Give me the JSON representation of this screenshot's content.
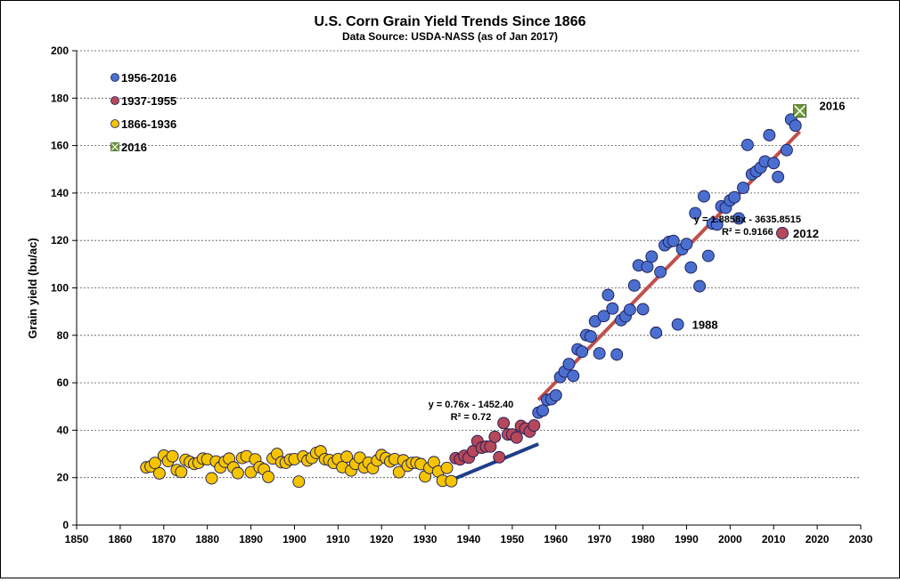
{
  "chart_data": {
    "type": "scatter",
    "title": "U.S. Corn Grain Yield Trends Since 1866",
    "subtitle": "Data Source: USDA-NASS (as of Jan 2017)",
    "xlabel": "",
    "ylabel": "Grain yield (bu/ac)",
    "xlim": [
      1850,
      2030
    ],
    "ylim": [
      0,
      200
    ],
    "xticks": [
      1850,
      1860,
      1870,
      1880,
      1890,
      1900,
      1910,
      1920,
      1930,
      1940,
      1950,
      1960,
      1970,
      1980,
      1990,
      2000,
      2010,
      2020,
      2030
    ],
    "yticks": [
      0,
      20,
      40,
      60,
      80,
      100,
      120,
      140,
      160,
      180,
      200
    ],
    "grid": "horizontal-dashed",
    "legend_position": "top-left",
    "colors": {
      "1956-2016": "#4a6fcf",
      "1937-1955": "#b5485a",
      "1866-1936": "#f5c400",
      "2016": "#6e9a3a",
      "trend_modern": "#c0504d",
      "trend_hybrid": "#1f3d8a"
    },
    "series": [
      {
        "name": "1956-2016",
        "marker": "circle",
        "points": [
          [
            1956,
            47.4
          ],
          [
            1957,
            48.3
          ],
          [
            1958,
            52.8
          ],
          [
            1959,
            53.1
          ],
          [
            1960,
            54.7
          ],
          [
            1961,
            62.4
          ],
          [
            1962,
            64.7
          ],
          [
            1963,
            67.9
          ],
          [
            1964,
            62.9
          ],
          [
            1965,
            74.1
          ],
          [
            1966,
            73.1
          ],
          [
            1967,
            80.1
          ],
          [
            1968,
            79.5
          ],
          [
            1969,
            85.9
          ],
          [
            1970,
            72.4
          ],
          [
            1971,
            88.1
          ],
          [
            1972,
            97.0
          ],
          [
            1973,
            91.3
          ],
          [
            1974,
            71.9
          ],
          [
            1975,
            86.4
          ],
          [
            1976,
            88.0
          ],
          [
            1977,
            90.8
          ],
          [
            1978,
            101.0
          ],
          [
            1979,
            109.5
          ],
          [
            1980,
            91.0
          ],
          [
            1981,
            108.9
          ],
          [
            1982,
            113.2
          ],
          [
            1983,
            81.1
          ],
          [
            1984,
            106.7
          ],
          [
            1985,
            118.0
          ],
          [
            1986,
            119.4
          ],
          [
            1987,
            119.8
          ],
          [
            1988,
            84.6
          ],
          [
            1989,
            116.3
          ],
          [
            1990,
            118.5
          ],
          [
            1991,
            108.6
          ],
          [
            1992,
            131.5
          ],
          [
            1993,
            100.7
          ],
          [
            1994,
            138.6
          ],
          [
            1995,
            113.5
          ],
          [
            1996,
            127.1
          ],
          [
            1997,
            126.7
          ],
          [
            1998,
            134.4
          ],
          [
            1999,
            133.8
          ],
          [
            2000,
            136.9
          ],
          [
            2001,
            138.2
          ],
          [
            2002,
            129.3
          ],
          [
            2003,
            142.2
          ],
          [
            2004,
            160.3
          ],
          [
            2005,
            147.9
          ],
          [
            2006,
            149.1
          ],
          [
            2007,
            150.7
          ],
          [
            2008,
            153.3
          ],
          [
            2009,
            164.4
          ],
          [
            2010,
            152.6
          ],
          [
            2011,
            146.8
          ],
          [
            2013,
            158.1
          ],
          [
            2014,
            171.0
          ],
          [
            2015,
            168.4
          ]
        ]
      },
      {
        "name": "1937-1955",
        "marker": "circle",
        "points": [
          [
            1937,
            28.2
          ],
          [
            1938,
            27.7
          ],
          [
            1939,
            29.2
          ],
          [
            1940,
            28.4
          ],
          [
            1941,
            31.1
          ],
          [
            1942,
            35.4
          ],
          [
            1943,
            32.6
          ],
          [
            1944,
            33.1
          ],
          [
            1945,
            33.1
          ],
          [
            1946,
            37.2
          ],
          [
            1947,
            28.6
          ],
          [
            1948,
            43.0
          ],
          [
            1949,
            38.2
          ],
          [
            1950,
            38.2
          ],
          [
            1951,
            36.9
          ],
          [
            1952,
            41.8
          ],
          [
            1953,
            40.7
          ],
          [
            1954,
            39.4
          ],
          [
            1955,
            42.0
          ],
          [
            2012,
            123.1
          ]
        ]
      },
      {
        "name": "1866-1936",
        "marker": "circle",
        "points": [
          [
            1866,
            24.3
          ],
          [
            1867,
            24.7
          ],
          [
            1868,
            26.2
          ],
          [
            1869,
            21.8
          ],
          [
            1870,
            29.3
          ],
          [
            1871,
            27.0
          ],
          [
            1872,
            29.0
          ],
          [
            1873,
            23.2
          ],
          [
            1874,
            22.4
          ],
          [
            1875,
            27.5
          ],
          [
            1876,
            26.6
          ],
          [
            1877,
            25.8
          ],
          [
            1878,
            26.3
          ],
          [
            1879,
            28.0
          ],
          [
            1880,
            27.7
          ],
          [
            1881,
            19.7
          ],
          [
            1882,
            26.8
          ],
          [
            1883,
            24.3
          ],
          [
            1884,
            26.7
          ],
          [
            1885,
            28.0
          ],
          [
            1886,
            24.3
          ],
          [
            1887,
            21.9
          ],
          [
            1888,
            28.3
          ],
          [
            1889,
            29.0
          ],
          [
            1890,
            22.3
          ],
          [
            1891,
            27.7
          ],
          [
            1892,
            24.4
          ],
          [
            1893,
            23.5
          ],
          [
            1894,
            20.3
          ],
          [
            1895,
            28.1
          ],
          [
            1896,
            30.0
          ],
          [
            1897,
            26.5
          ],
          [
            1898,
            26.3
          ],
          [
            1899,
            27.6
          ],
          [
            1900,
            27.8
          ],
          [
            1901,
            18.3
          ],
          [
            1902,
            28.9
          ],
          [
            1903,
            27.2
          ],
          [
            1904,
            28.3
          ],
          [
            1905,
            30.4
          ],
          [
            1906,
            31.1
          ],
          [
            1907,
            27.8
          ],
          [
            1908,
            27.4
          ],
          [
            1909,
            26.2
          ],
          [
            1910,
            27.8
          ],
          [
            1911,
            24.4
          ],
          [
            1912,
            28.8
          ],
          [
            1913,
            23.0
          ],
          [
            1914,
            25.8
          ],
          [
            1915,
            28.4
          ],
          [
            1916,
            24.3
          ],
          [
            1917,
            26.3
          ],
          [
            1918,
            24.0
          ],
          [
            1919,
            27.2
          ],
          [
            1920,
            29.5
          ],
          [
            1921,
            28.2
          ],
          [
            1922,
            26.8
          ],
          [
            1923,
            27.8
          ],
          [
            1924,
            22.3
          ],
          [
            1925,
            27.3
          ],
          [
            1926,
            25.0
          ],
          [
            1927,
            26.2
          ],
          [
            1928,
            26.3
          ],
          [
            1929,
            25.7
          ],
          [
            1930,
            20.5
          ],
          [
            1931,
            24.1
          ],
          [
            1932,
            26.5
          ],
          [
            1933,
            22.6
          ],
          [
            1934,
            18.7
          ],
          [
            1935,
            24.1
          ],
          [
            1936,
            18.5
          ]
        ]
      },
      {
        "name": "2016",
        "marker": "square-x",
        "points": [
          [
            2016,
            174.6
          ]
        ]
      }
    ],
    "trendlines": [
      {
        "name": "1937-1955 trend",
        "x": [
          1937,
          1956
        ],
        "slope": 0.76,
        "intercept": -1452.4,
        "equation": "y = 0.76x - 1452.40",
        "r2": "R² = 0.72"
      },
      {
        "name": "1956-2016 trend",
        "x": [
          1956,
          2016
        ],
        "slope": 1.8858,
        "intercept": -3635.8515,
        "equation": "y = 1.8858x - 3635.8515",
        "r2": "R² = 0.9166"
      }
    ],
    "callouts": [
      {
        "text": "2016",
        "x": 2016,
        "y": 174.6
      },
      {
        "text": "2012",
        "x": 2012,
        "y": 123.1
      },
      {
        "text": "1988",
        "x": 1988,
        "y": 84.6
      }
    ]
  }
}
